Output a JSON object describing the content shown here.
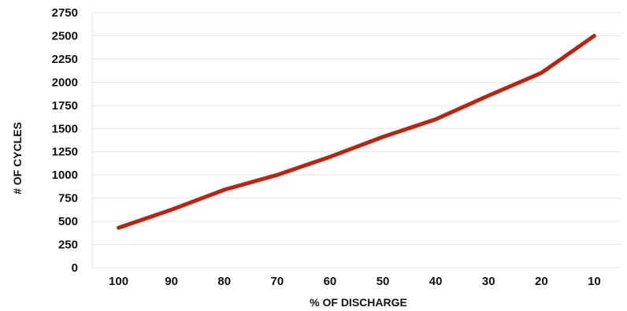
{
  "chart_data": {
    "type": "line",
    "title": "",
    "xlabel": "% OF DISCHARGE",
    "ylabel": "# OF CYCLES",
    "categories": [
      "100",
      "90",
      "80",
      "70",
      "60",
      "50",
      "40",
      "30",
      "20",
      "10"
    ],
    "series": [
      {
        "values": [
          430,
          625,
          840,
          1000,
          1195,
          1410,
          1600,
          1855,
          2100,
          2500
        ],
        "color": "#c0220f"
      }
    ],
    "ylim": [
      0,
      2750
    ],
    "yticks": [
      "0",
      "250",
      "500",
      "750",
      "1000",
      "1250",
      "1500",
      "1750",
      "2000",
      "2250",
      "2500",
      "2750"
    ],
    "grid": true,
    "legend": "none"
  }
}
